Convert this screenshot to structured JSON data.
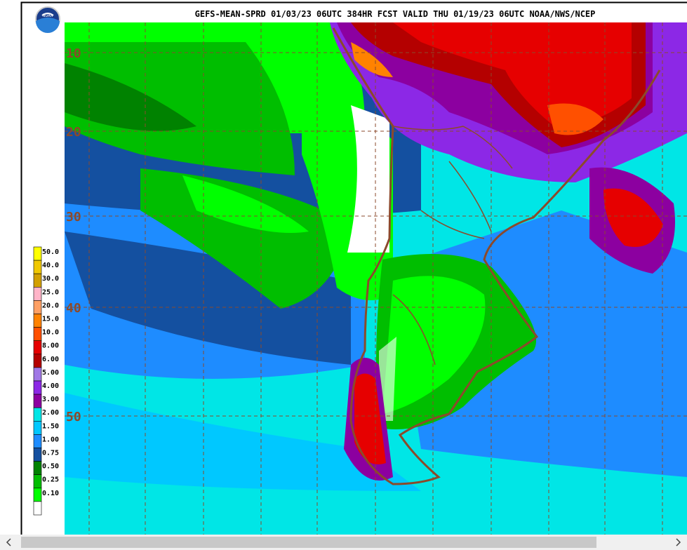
{
  "header": {
    "title": "GEFS-MEAN-SPRD 01/03/23 06UTC 384HR FCST VALID THU 01/19/23 06UTC NOAA/NWS/NCEP",
    "logo": "NOAA"
  },
  "map": {
    "latitude_labels": [
      "10",
      "20",
      "30",
      "40",
      "50"
    ]
  },
  "legend": {
    "items": [
      {
        "label": "50.0",
        "color": "#ffff00"
      },
      {
        "label": "40.0",
        "color": "#f0c800"
      },
      {
        "label": "30.0",
        "color": "#d2a000"
      },
      {
        "label": "25.0",
        "color": "#ffb4c8"
      },
      {
        "label": "20.0",
        "color": "#ffa064"
      },
      {
        "label": "15.0",
        "color": "#ff8200"
      },
      {
        "label": "10.0",
        "color": "#ff5000"
      },
      {
        "label": "8.00",
        "color": "#e60000"
      },
      {
        "label": "6.00",
        "color": "#b40000"
      },
      {
        "label": "5.00",
        "color": "#a078e6"
      },
      {
        "label": "4.00",
        "color": "#8c28e6"
      },
      {
        "label": "3.00",
        "color": "#8c00a0"
      },
      {
        "label": "2.00",
        "color": "#00e6e6"
      },
      {
        "label": "1.50",
        "color": "#00c8ff"
      },
      {
        "label": "1.00",
        "color": "#1e8cff"
      },
      {
        "label": "0.75",
        "color": "#1450a0"
      },
      {
        "label": "0.50",
        "color": "#008200"
      },
      {
        "label": "0.25",
        "color": "#00be00"
      },
      {
        "label": "0.10",
        "color": "#00ff00"
      }
    ]
  }
}
